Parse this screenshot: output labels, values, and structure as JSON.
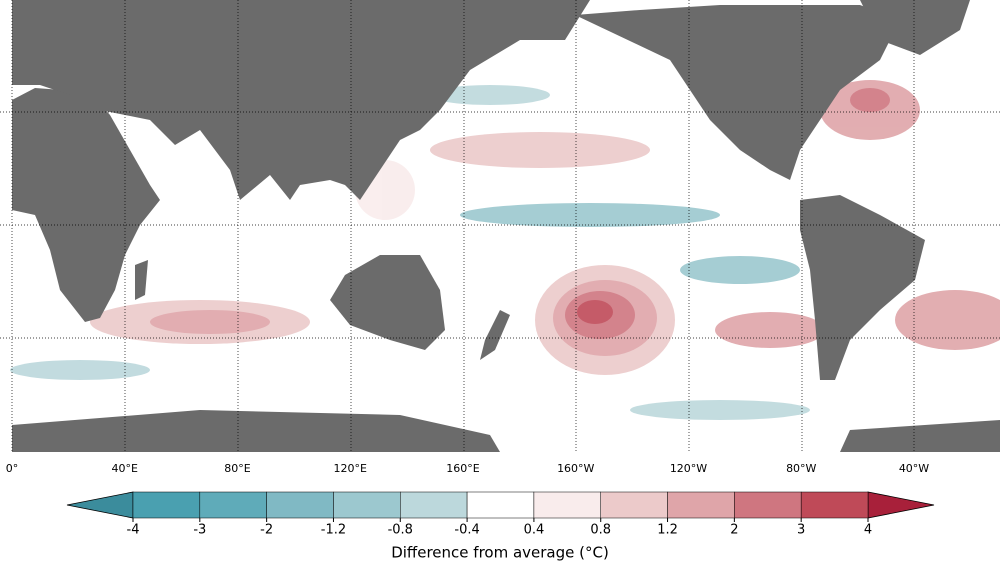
{
  "map": {
    "lon_labels": [
      "0°",
      "40°E",
      "80°E",
      "120°E",
      "160°E",
      "160°W",
      "120°W",
      "80°W",
      "40°W"
    ],
    "colorbar": {
      "ticks": [
        -4,
        -3,
        -2,
        -1.2,
        -0.8,
        -0.4,
        0.4,
        0.8,
        1.2,
        2,
        3,
        4
      ],
      "colors": [
        "#4aa0b0",
        "#5fabb9",
        "#80b9c4",
        "#9cc8cf",
        "#bcd8dc",
        "#ffffff",
        "#f9ecec",
        "#eccaca",
        "#dfa5a9",
        "#cf7680",
        "#bf4a58"
      ],
      "under_color": "#3b8c9c",
      "over_color": "#a8203a",
      "label": "Difference from average (°C)"
    }
  }
}
